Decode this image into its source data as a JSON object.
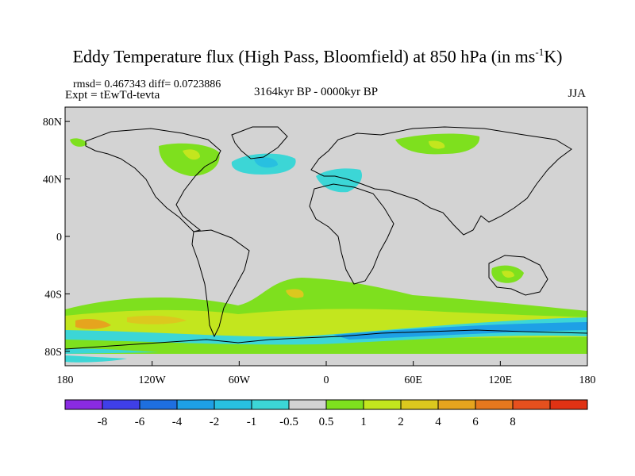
{
  "title": {
    "main": "Eddy Temperature flux (High Pass, Bloomfield) at 850 hPa (in ms",
    "sup": "-1",
    "end": "K)"
  },
  "stats": "rmsd= 0.467343 diff= 0.0723886",
  "expt": "Expt = tEwTd-tevta",
  "period": "3164kyr BP - 0000kyr BP",
  "season": "JJA",
  "map": {
    "lat_labels": [
      {
        "lat": 80,
        "label": "80N"
      },
      {
        "lat": 40,
        "label": "40N"
      },
      {
        "lat": 0,
        "label": "0"
      },
      {
        "lat": -40,
        "label": "40S"
      },
      {
        "lat": -80,
        "label": "80S"
      }
    ],
    "lon_labels": [
      {
        "lon": -180,
        "label": "180"
      },
      {
        "lon": -120,
        "label": "120W"
      },
      {
        "lon": -60,
        "label": "60W"
      },
      {
        "lon": 0,
        "label": "0"
      },
      {
        "lon": 60,
        "label": "60E"
      },
      {
        "lon": 120,
        "label": "120E"
      },
      {
        "lon": 180,
        "label": "180"
      }
    ],
    "lat_range": [
      -90,
      90
    ],
    "lon_range": [
      -180,
      180
    ],
    "background_color": "#d3d3d3"
  },
  "colorbar": {
    "colors": [
      "#8a2be2",
      "#3f3fe8",
      "#1e6fe0",
      "#1ea0e6",
      "#28c0e0",
      "#3cd6d6",
      "#d3d3d3",
      "#7ee01e",
      "#c3e61e",
      "#dcc81e",
      "#e6a41e",
      "#e6781e",
      "#e6501e",
      "#e03214"
    ],
    "labels": [
      "-8",
      "-6",
      "-4",
      "-2",
      "-1",
      "-0.5",
      "0.5",
      "1",
      "2",
      "4",
      "6",
      "8"
    ]
  }
}
